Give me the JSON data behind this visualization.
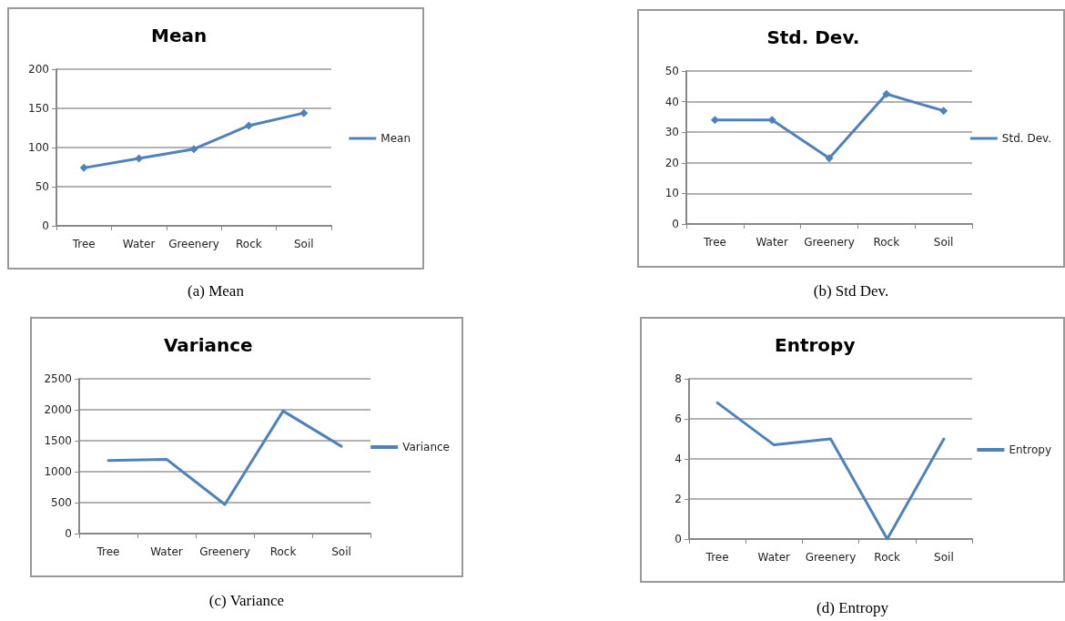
{
  "chart_data": [
    {
      "type": "line",
      "title": "Mean",
      "categories": [
        "Tree",
        "Water",
        "Greenery",
        "Rock",
        "Soil"
      ],
      "series": [
        {
          "name": "Mean",
          "color": "#4f81bd",
          "values": [
            74,
            86,
            98,
            128,
            144
          ]
        }
      ],
      "ylim": [
        0,
        200
      ],
      "yticks": [
        0,
        50,
        100,
        150,
        200
      ],
      "grid": "y",
      "legend": "right",
      "marker": "diamond",
      "annotations": [
        "(a) Mean"
      ]
    },
    {
      "type": "line",
      "title": "Std. Dev.",
      "categories": [
        "Tree",
        "Water",
        "Greenery",
        "Rock",
        "Soil"
      ],
      "series": [
        {
          "name": "Std. Dev.",
          "color": "#4f81bd",
          "values": [
            34,
            34,
            21.5,
            42.5,
            37
          ]
        }
      ],
      "ylim": [
        0,
        50
      ],
      "yticks": [
        0,
        10,
        20,
        30,
        40,
        50
      ],
      "grid": "y",
      "legend": "right",
      "marker": "diamond",
      "annotations": [
        "(b) Std Dev."
      ]
    },
    {
      "type": "line",
      "title": "Variance",
      "categories": [
        "Tree",
        "Water",
        "Greenery",
        "Rock",
        "Soil"
      ],
      "series": [
        {
          "name": "Variance",
          "color": "#4f81bd",
          "values": [
            1180,
            1200,
            470,
            1980,
            1410
          ]
        }
      ],
      "ylim": [
        0,
        2500
      ],
      "yticks": [
        0,
        500,
        1000,
        1500,
        2000,
        2500
      ],
      "grid": "y",
      "legend": "right",
      "marker": "none",
      "annotations": [
        "(c) Variance"
      ]
    },
    {
      "type": "line",
      "title": "Entropy",
      "categories": [
        "Tree",
        "Water",
        "Greenery",
        "Rock",
        "Soil"
      ],
      "series": [
        {
          "name": "Entropy",
          "color": "#4f81bd",
          "values": [
            6.8,
            4.7,
            5.0,
            0,
            5.0
          ]
        }
      ],
      "ylim": [
        0,
        8
      ],
      "yticks": [
        0,
        2,
        4,
        6,
        8
      ],
      "grid": "y",
      "legend": "right",
      "marker": "none",
      "annotations": [
        "(d) Entropy"
      ]
    }
  ]
}
